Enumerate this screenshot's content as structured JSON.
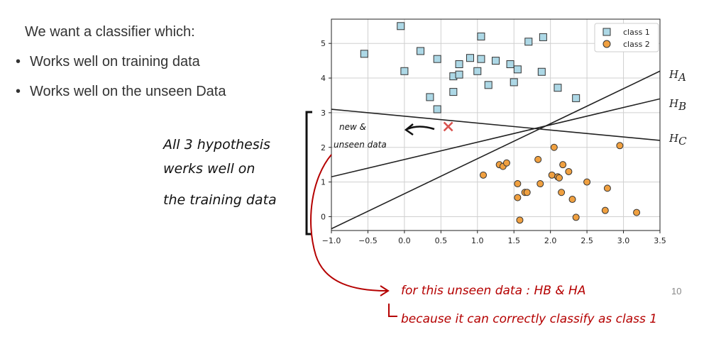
{
  "slide": {
    "heading": "We want a classifier which:",
    "bullets": [
      "Works well on training data",
      "Works well on the unseen Data"
    ],
    "page_number": "10"
  },
  "annotations": {
    "bracket_note": [
      "All 3 hypothesis",
      "werks well on",
      "the training data"
    ],
    "new_data_note": [
      "new &",
      "unseen data"
    ],
    "conclusion_1": "for this unseen data : HB & HA",
    "conclusion_2": "because it can correctly classify as class 1",
    "ink_black": "#111111",
    "ink_red": "#b50000"
  },
  "chart_data": {
    "type": "scatter",
    "title": "",
    "xlabel": "",
    "ylabel": "",
    "xlim": [
      -1.0,
      3.5
    ],
    "ylim": [
      -0.4,
      5.7
    ],
    "xticks": [
      -1.0,
      -0.5,
      0.0,
      0.5,
      1.0,
      1.5,
      2.0,
      2.5,
      3.0,
      3.5
    ],
    "xtick_labels": [
      "−1.0",
      "−0.5",
      "0.0",
      "0.5",
      "1.0",
      "1.5",
      "2.0",
      "2.5",
      "3.0",
      "3.5"
    ],
    "yticks": [
      0,
      1,
      2,
      3,
      4,
      5
    ],
    "ytick_labels": [
      "0",
      "1",
      "2",
      "3",
      "4",
      "5"
    ],
    "grid": true,
    "legend_position": "top-right",
    "series": [
      {
        "name": "class 1",
        "marker": "square",
        "color": "#add8e6",
        "points": [
          [
            -0.55,
            4.7
          ],
          [
            -0.05,
            5.5
          ],
          [
            0.0,
            4.2
          ],
          [
            0.22,
            4.78
          ],
          [
            0.35,
            3.45
          ],
          [
            0.45,
            3.1
          ],
          [
            0.45,
            4.55
          ],
          [
            0.67,
            4.05
          ],
          [
            0.67,
            3.6
          ],
          [
            0.75,
            4.1
          ],
          [
            0.75,
            4.4
          ],
          [
            0.9,
            4.58
          ],
          [
            1.0,
            4.2
          ],
          [
            1.05,
            4.55
          ],
          [
            1.05,
            5.2
          ],
          [
            1.15,
            3.8
          ],
          [
            1.25,
            4.5
          ],
          [
            1.45,
            4.4
          ],
          [
            1.5,
            3.88
          ],
          [
            1.55,
            4.25
          ],
          [
            1.7,
            5.05
          ],
          [
            1.88,
            4.18
          ],
          [
            1.9,
            5.18
          ],
          [
            2.1,
            3.72
          ],
          [
            2.35,
            3.42
          ]
        ]
      },
      {
        "name": "class 2",
        "marker": "circle",
        "color": "#f0a040",
        "points": [
          [
            1.08,
            1.2
          ],
          [
            1.3,
            1.5
          ],
          [
            1.35,
            1.45
          ],
          [
            1.4,
            1.55
          ],
          [
            1.55,
            0.95
          ],
          [
            1.55,
            0.55
          ],
          [
            1.58,
            -0.1
          ],
          [
            1.65,
            0.7
          ],
          [
            1.68,
            0.7
          ],
          [
            1.83,
            1.65
          ],
          [
            1.86,
            0.95
          ],
          [
            2.02,
            1.2
          ],
          [
            2.05,
            2.0
          ],
          [
            2.1,
            1.15
          ],
          [
            2.12,
            1.12
          ],
          [
            2.15,
            0.7
          ],
          [
            2.17,
            1.5
          ],
          [
            2.25,
            1.3
          ],
          [
            2.3,
            0.5
          ],
          [
            2.35,
            -0.02
          ],
          [
            2.5,
            1.0
          ],
          [
            2.75,
            0.18
          ],
          [
            2.78,
            0.82
          ],
          [
            2.95,
            2.05
          ],
          [
            3.18,
            0.12
          ]
        ]
      }
    ],
    "new_point": {
      "x": 0.6,
      "y": 2.6,
      "marker": "x",
      "color": "#d9534f"
    },
    "lines": [
      {
        "name": "H_A",
        "label": "H",
        "subscript": "A",
        "x1": -1.0,
        "y1": -0.35,
        "x2": 3.5,
        "y2": 4.2
      },
      {
        "name": "H_B",
        "label": "H",
        "subscript": "B",
        "x1": -1.0,
        "y1": 1.15,
        "x2": 3.5,
        "y2": 3.4
      },
      {
        "name": "H_C",
        "label": "H",
        "subscript": "C",
        "x1": -1.0,
        "y1": 3.1,
        "x2": 3.5,
        "y2": 2.2
      }
    ]
  }
}
